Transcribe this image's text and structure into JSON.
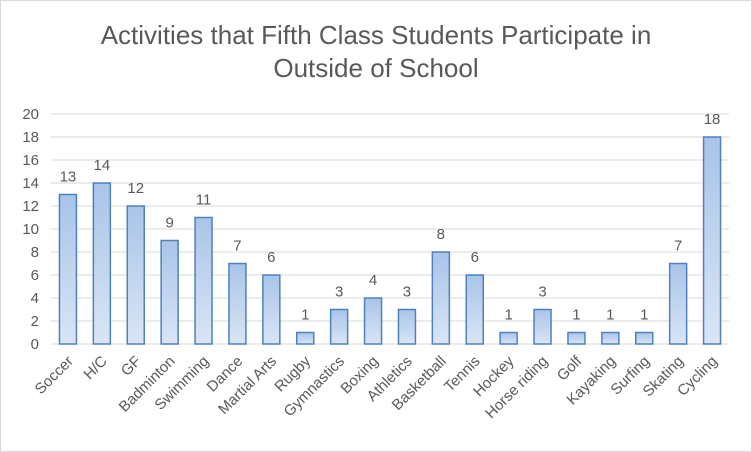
{
  "chart_data": {
    "type": "bar",
    "title": "Activities that Fifth Class Students Participate in Outside of School",
    "xlabel": "",
    "ylabel": "",
    "ylim": [
      0,
      20
    ],
    "yticks": [
      0,
      2,
      4,
      6,
      8,
      10,
      12,
      14,
      16,
      18,
      20
    ],
    "grid": true,
    "legend": "none",
    "categories": [
      "Soccer",
      "H/C",
      "GF",
      "Badminton",
      "Swimming",
      "Dance",
      "Martial Arts",
      "Rugby",
      "Gymnastics",
      "Boxing",
      "Athletics",
      "Basketball",
      "Tennis",
      "Hockey",
      "Horse riding",
      "Golf",
      "Kayaking",
      "Surfing",
      "Skating",
      "Cycling"
    ],
    "values": [
      13,
      14,
      12,
      9,
      11,
      7,
      6,
      1,
      3,
      4,
      3,
      8,
      6,
      1,
      3,
      1,
      1,
      1,
      7,
      18
    ],
    "colors": {
      "bar_fill_top": "#a9c4e8",
      "bar_fill_bottom": "#d9e5f5",
      "bar_stroke": "#4f81bd",
      "gridline": "#d9d9d9",
      "text": "#595959"
    }
  }
}
